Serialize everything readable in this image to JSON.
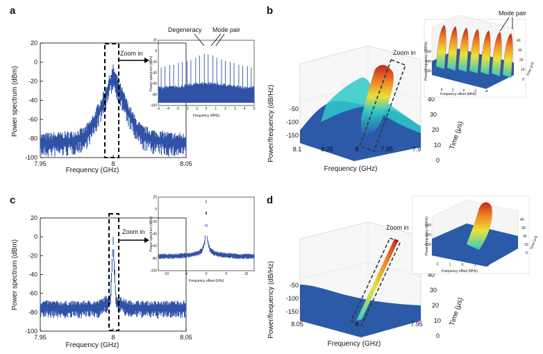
{
  "panels": {
    "a": "a",
    "b": "b",
    "c": "c",
    "d": "d"
  },
  "chart_data": [
    {
      "id": "a",
      "type": "line",
      "xlabel": "Frequency (GHz)",
      "ylabel": "Power spectrum (dBm)",
      "xlim": [
        7.95,
        8.05
      ],
      "ylim": [
        -100,
        20
      ],
      "xticks": [
        "7.95",
        "8",
        "8.05"
      ],
      "yticks": [
        "20",
        "0",
        "-20",
        "-40",
        "-60",
        "-80",
        "-100"
      ],
      "annotations": [
        "Zoom in"
      ],
      "series": [
        {
          "x": [
            7.95,
            7.96,
            7.97,
            7.98,
            7.985,
            7.99,
            7.995,
            8.0,
            8.005,
            8.01,
            8.015,
            8.02,
            8.03,
            8.04,
            8.05
          ],
          "values": [
            -82,
            -81,
            -80,
            -76,
            -66,
            -50,
            -32,
            -10,
            -30,
            -48,
            -64,
            -74,
            -79,
            -81,
            -82
          ]
        }
      ],
      "inset": {
        "xlabel": "Frequency (MHz)",
        "ylabel": "Power spectrum (dBm)",
        "xlim": [
          -5,
          5
        ],
        "ylim": [
          -100,
          20
        ],
        "xticks": [
          "-5",
          "-4",
          "-3",
          "-2",
          "-1",
          "0",
          "1",
          "2",
          "3",
          "4",
          "5"
        ],
        "yticks": [
          "20",
          "0",
          "-20",
          "-40",
          "-60",
          "-80",
          "-100"
        ],
        "annotations": [
          "Degeneracy",
          "Mode pair"
        ],
        "peaks_x": [
          -4.7,
          -4.3,
          -3.8,
          -3.4,
          -2.9,
          -2.5,
          -2.0,
          -1.6,
          -1.1,
          -0.7,
          -0.2,
          0.2,
          0.7,
          1.1,
          1.6,
          2.0,
          2.5,
          2.9,
          3.4,
          3.8,
          4.3,
          4.7
        ],
        "peaks_y": [
          -30,
          -28,
          -26,
          -25,
          -22,
          -20,
          -18,
          -16,
          -12,
          -8,
          -5,
          -6,
          -8,
          -12,
          -15,
          -18,
          -20,
          -22,
          -25,
          -27,
          -28,
          -30
        ],
        "noise_floor": -70
      }
    },
    {
      "id": "b",
      "type": "area",
      "xlabel": "Frequency (GHz)",
      "ylabel": "Power/frequency (dB/Hz)",
      "zlabel": "Time (μs)",
      "xticks": [
        "8.1",
        "8.05",
        "8",
        "7.95",
        "7.9"
      ],
      "zticks": [
        "-50",
        "-100",
        "-150"
      ],
      "tticks": [
        "40",
        "30",
        "20",
        "10",
        "0"
      ],
      "annotations": [
        "Zoom in"
      ],
      "inset": {
        "xlabel": "Frequency offset (MHz)",
        "ylabel": "Power/frequency (dB/Hz)",
        "zlabel": "Time (μs)",
        "xticks": [
          "4",
          "2",
          "0",
          "-2",
          "-4"
        ],
        "zticks": [
          "-50",
          "-100",
          "-150"
        ],
        "tticks": [
          "40",
          "30",
          "20",
          "10",
          "0"
        ],
        "annotations": [
          "Mode pair"
        ]
      }
    },
    {
      "id": "c",
      "type": "line",
      "xlabel": "Frequency (GHz)",
      "ylabel": "Power spectrum (dBm)",
      "xlim": [
        7.95,
        8.05
      ],
      "ylim": [
        -100,
        20
      ],
      "xticks": [
        "7.95",
        "8",
        "8.05"
      ],
      "yticks": [
        "20",
        "0",
        "-20",
        "-40",
        "-60",
        "-80",
        "-100"
      ],
      "annotations": [
        "Zoom in"
      ],
      "series": [
        {
          "x": [
            7.95,
            7.97,
            7.99,
            7.998,
            8.0,
            8.002,
            8.01,
            8.03,
            8.05
          ],
          "values": [
            -72,
            -73,
            -72,
            -65,
            -2,
            -66,
            -72,
            -73,
            -72
          ]
        }
      ],
      "inset": {
        "xlabel": "Frequency offset (kHz)",
        "ylabel": "Power spectrum (dBm)",
        "xlim": [
          -12,
          12
        ],
        "ylim": [
          -100,
          20
        ],
        "xticks": [
          "-10",
          "-5",
          "0",
          "5",
          "10"
        ],
        "yticks": [
          "20",
          "0",
          "-20",
          "-40",
          "-60",
          "-80",
          "-100"
        ],
        "x": [
          -12,
          -8,
          -4,
          -2,
          -1,
          -0.3,
          0,
          0.3,
          1,
          2,
          4,
          8,
          12
        ],
        "values": [
          -75,
          -75,
          -73,
          -70,
          -65,
          -50,
          15,
          -50,
          -65,
          -70,
          -73,
          -75,
          -75
        ]
      }
    },
    {
      "id": "d",
      "type": "area",
      "xlabel": "Frequency (GHz)",
      "ylabel": "Power/frequency (dB/Hz)",
      "zlabel": "Time (μs)",
      "xticks": [
        "8.05",
        "8",
        "7.95"
      ],
      "zticks": [
        "-50",
        "-100",
        "-150"
      ],
      "tticks": [
        "40",
        "30",
        "20",
        "10",
        "0"
      ],
      "annotations": [
        "Zoom in"
      ],
      "inset": {
        "xlabel": "Frequency offset (MHz)",
        "ylabel": "Power/frequency (dB/Hz)",
        "zlabel": "Time (μs)",
        "xticks": [
          "2",
          "1",
          "0",
          "-1",
          "-2"
        ],
        "zticks": [
          "-50",
          "-100",
          "-150"
        ],
        "tticks": [
          "40",
          "30",
          "20",
          "10",
          "0"
        ]
      }
    }
  ],
  "colors": {
    "trace": "#2f52a6",
    "surface_low": "#2a5aa8",
    "surface_mid": "#2ec9c9",
    "surface_high": "#c0281e"
  }
}
